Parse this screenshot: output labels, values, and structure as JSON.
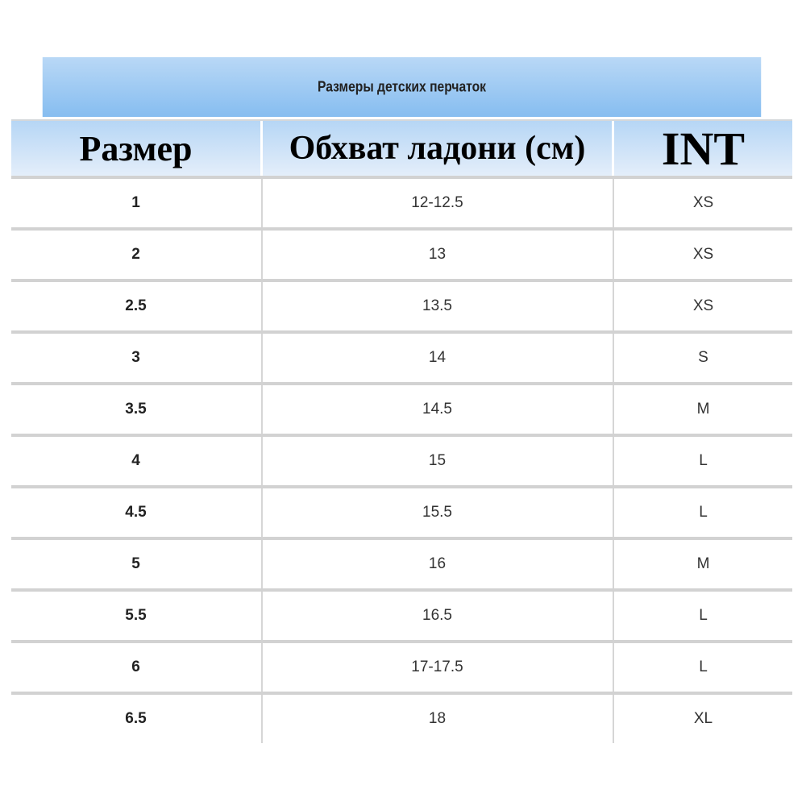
{
  "title": "Размеры детских перчаток",
  "headers": [
    "Размер",
    "Обхват ладони (см)",
    "INT"
  ],
  "rows": [
    [
      "1",
      "12-12.5",
      "XS"
    ],
    [
      "2",
      "13",
      "XS"
    ],
    [
      "2.5",
      "13.5",
      "XS"
    ],
    [
      "3",
      "14",
      "S"
    ],
    [
      "3.5",
      "14.5",
      "M"
    ],
    [
      "4",
      "15",
      "L"
    ],
    [
      "4.5",
      "15.5",
      "L"
    ],
    [
      "5",
      "16",
      "M"
    ],
    [
      "5.5",
      "16.5",
      "L"
    ],
    [
      "6",
      "17-17.5",
      "L"
    ],
    [
      "6.5",
      "18",
      "XL"
    ]
  ],
  "colors": {
    "header_blue": "#86bdf0",
    "header_light": "#e4eefa",
    "separator": "#d2d2d2"
  }
}
